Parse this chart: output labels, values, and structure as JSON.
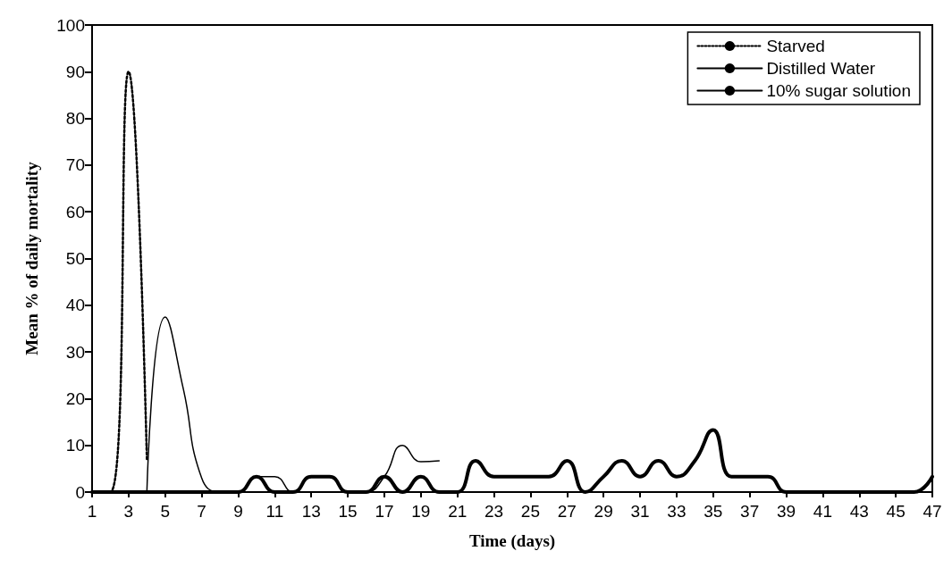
{
  "chart_data": {
    "type": "line",
    "xlabel": "Time (days)",
    "ylabel": "Mean % of daily mortality",
    "xlim": [
      1,
      47
    ],
    "xticks": [
      1,
      3,
      5,
      7,
      9,
      11,
      13,
      15,
      17,
      19,
      21,
      23,
      25,
      27,
      29,
      31,
      33,
      35,
      37,
      39,
      41,
      43,
      45,
      47
    ],
    "ylim": [
      0,
      100
    ],
    "yticks": [
      0,
      10,
      20,
      30,
      40,
      50,
      60,
      70,
      80,
      90,
      100
    ],
    "grid": false,
    "legend": "top right",
    "marker": "none",
    "series": [
      {
        "name": "Starved",
        "color": "#000000",
        "line_style": "dotted",
        "x": [
          1,
          2,
          3,
          4
        ],
        "values": [
          0,
          0,
          90,
          7
        ]
      },
      {
        "name": "Distilled Water",
        "color": "#000000",
        "line_style": "solid",
        "x": [
          4,
          5,
          6,
          7,
          8,
          9,
          10,
          11,
          12,
          13,
          14,
          15,
          16,
          17,
          18,
          19,
          20
        ],
        "values": [
          0,
          37.5,
          22,
          3,
          0,
          0,
          3.3,
          3.3,
          0,
          3.3,
          3.3,
          0,
          0,
          3.3,
          10,
          6.5,
          6.7
        ]
      },
      {
        "name": "10% sugar solution",
        "color": "#000000",
        "line_style": "solid",
        "x": [
          1,
          2,
          3,
          4,
          5,
          6,
          7,
          8,
          9,
          10,
          11,
          12,
          13,
          14,
          15,
          16,
          17,
          18,
          19,
          20,
          21,
          22,
          23,
          24,
          25,
          26,
          27,
          28,
          29,
          30,
          31,
          32,
          33,
          34,
          35,
          36,
          37,
          38,
          39,
          40,
          41,
          42,
          43,
          44,
          45,
          46,
          47
        ],
        "values": [
          0,
          0,
          0,
          0,
          0,
          0,
          0,
          0,
          0,
          3.3,
          0,
          0,
          3.3,
          3.3,
          0,
          0,
          3.3,
          0,
          3.3,
          0,
          0,
          6.7,
          3.3,
          3.3,
          3.3,
          3.3,
          6.7,
          0,
          3.3,
          6.7,
          3.3,
          6.7,
          3.3,
          6.7,
          13.3,
          3.3,
          3.3,
          3.3,
          0,
          0,
          0,
          0,
          0,
          0,
          0,
          0,
          3.3
        ]
      }
    ]
  }
}
